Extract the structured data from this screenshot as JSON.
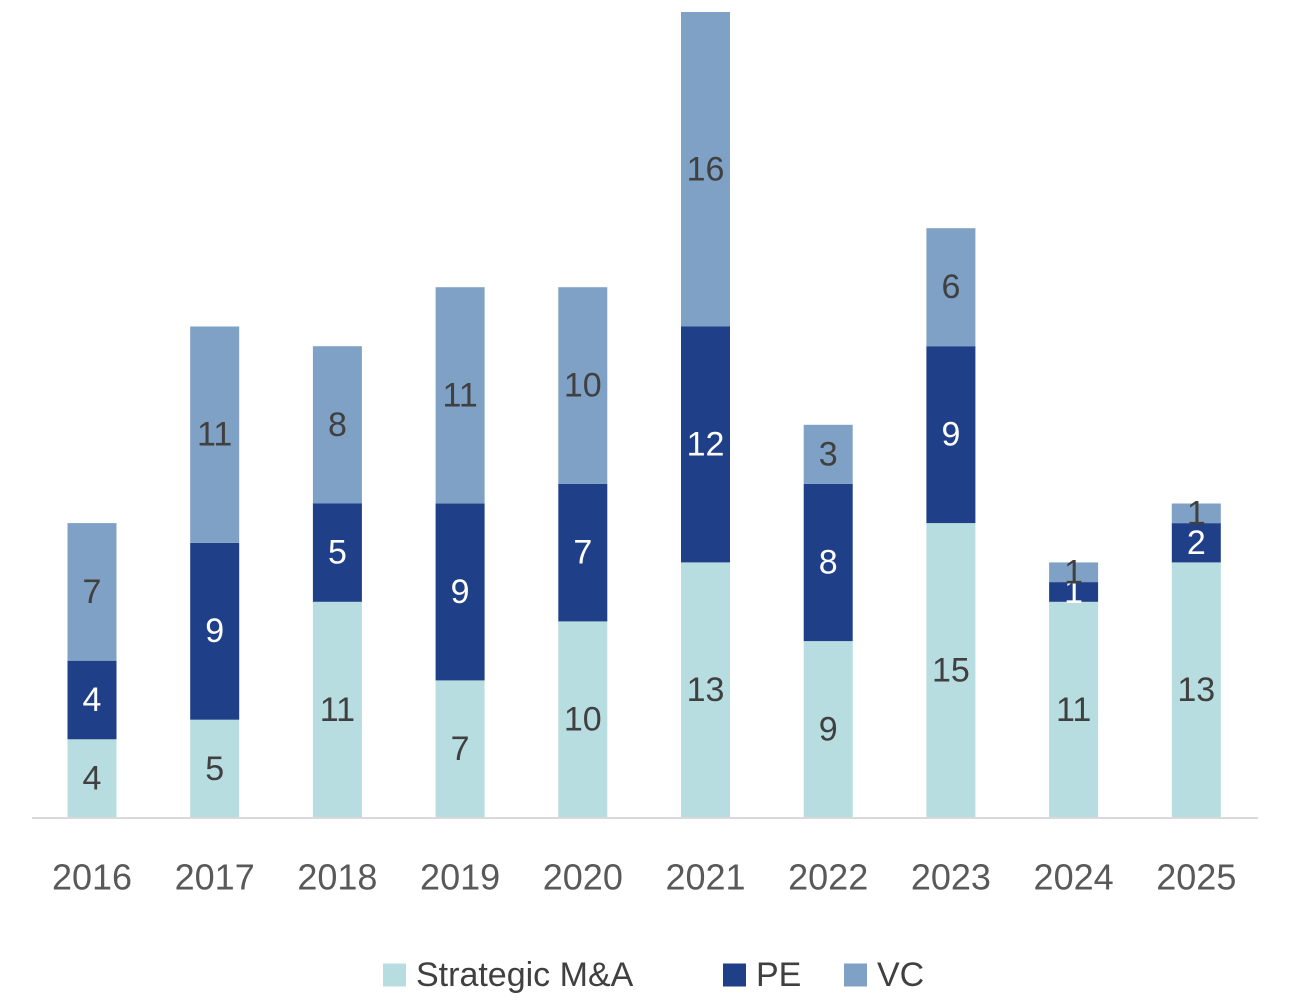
{
  "chart_data": {
    "type": "bar",
    "stacked": true,
    "title": "",
    "xlabel": "",
    "ylabel": "",
    "categories": [
      "2016",
      "2017",
      "2018",
      "2019",
      "2020",
      "2021",
      "2022",
      "2023",
      "2024",
      "2025"
    ],
    "series": [
      {
        "name": "Strategic M&A",
        "color": "#b7dde0",
        "label_color": "#404040",
        "values": [
          4,
          5,
          11,
          7,
          10,
          13,
          9,
          15,
          11,
          13
        ]
      },
      {
        "name": "PE",
        "color": "#1f3f89",
        "label_color": "#ffffff",
        "values": [
          4,
          9,
          5,
          9,
          7,
          12,
          8,
          9,
          1,
          2
        ]
      },
      {
        "name": "VC",
        "color": "#7ea1c5",
        "label_color": "#404040",
        "values": [
          7,
          11,
          8,
          11,
          10,
          16,
          3,
          6,
          1,
          1
        ]
      }
    ],
    "ylim": [
      0,
      41
    ],
    "grid": false,
    "legend": "bottom",
    "axis_color": "#d9d9d9"
  }
}
